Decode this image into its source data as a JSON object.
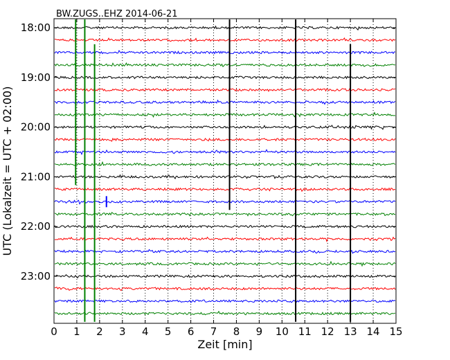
{
  "chart_data": {
    "type": "line",
    "title": "BW.ZUGS..EHZ 2014-06-21",
    "xlabel": "Zeit  [min]",
    "ylabel": "UTC (Lokalzeit = UTC + 02:00)",
    "xlim": [
      0,
      15
    ],
    "x_ticks": [
      "0",
      "1",
      "2",
      "3",
      "4",
      "5",
      "6",
      "7",
      "8",
      "9",
      "10",
      "11",
      "12",
      "13",
      "14",
      "15"
    ],
    "y_ticks": [
      "18:00",
      "19:00",
      "20:00",
      "21:00",
      "22:00",
      "23:00"
    ],
    "grid": "vertical dotted lines at each minute",
    "trace_interval_min": 15,
    "trace_start": "18:00",
    "trace_count": 24,
    "trace_color_cycle": [
      "#000000",
      "#ff0000",
      "#0000ff",
      "#008000"
    ],
    "spikes": [
      {
        "color": "#008000",
        "x_min": 0.95,
        "from": "18:00",
        "to": "21:00"
      },
      {
        "color": "#008000",
        "x_min": 1.35,
        "from": "18:00",
        "to": "23:45"
      },
      {
        "color": "#008000",
        "x_min": 1.78,
        "from": "18:30",
        "to": "23:45"
      },
      {
        "color": "#000000",
        "x_min": 7.7,
        "from": "18:00",
        "to": "21:30"
      },
      {
        "color": "#000000",
        "x_min": 10.6,
        "from": "18:00",
        "to": "23:45"
      },
      {
        "color": "#000000",
        "x_min": 13.0,
        "from": "18:30",
        "to": "23:45"
      },
      {
        "color": "#0000ff",
        "x_min": 2.3,
        "from": "21:30",
        "to": "21:30"
      }
    ]
  }
}
